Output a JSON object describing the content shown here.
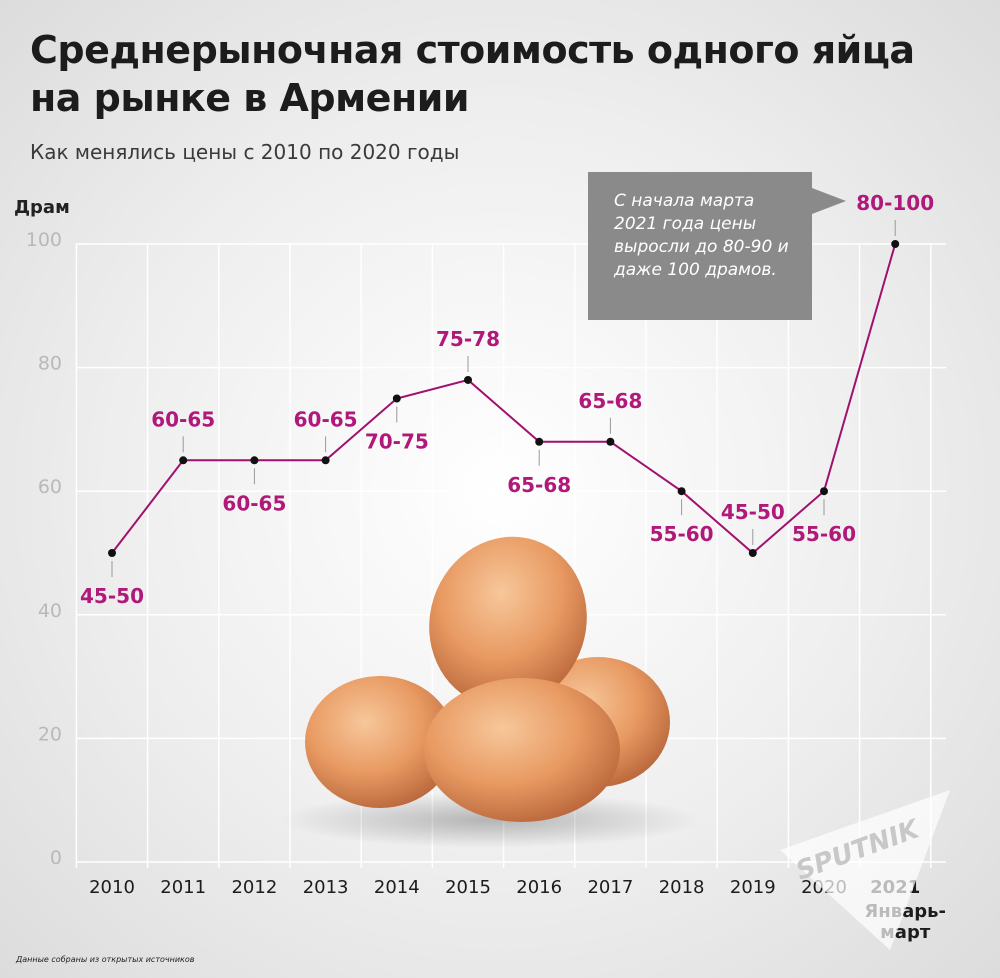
{
  "title": "Среднерыночная стоимость одного яйца на рынке в Армении",
  "subtitle": "Как менялись цены с 2010 по 2020 годы",
  "callout": "С начала марта 2021 года цены выросли до 80-90 и даже 100 драмов.",
  "source": "Данные собраны из открытых источников",
  "logo": "SPUTNIK",
  "colors": {
    "line": "#a0106e",
    "label": "#b0187a",
    "grid": "#ffffff",
    "axis_label": "#b9b9b9"
  },
  "chart_data": {
    "type": "line",
    "ylabel": "Драм",
    "ylim": [
      0,
      100
    ],
    "yticks": [
      0,
      20,
      40,
      60,
      80,
      100
    ],
    "grid": true,
    "categories": [
      "2010",
      "2011",
      "2012",
      "2013",
      "2014",
      "2015",
      "2016",
      "2017",
      "2018",
      "2019",
      "2020",
      "2021"
    ],
    "category_subtitles": [
      "",
      "",
      "",
      "",
      "",
      "",
      "",
      "",
      "",
      "",
      "",
      "Январь-\nмарт"
    ],
    "values": [
      50,
      65,
      65,
      65,
      75,
      78,
      68,
      68,
      60,
      50,
      60,
      100
    ],
    "data_labels": [
      "45-50",
      "60-65",
      "60-65",
      "60-65",
      "70-75",
      "75-78",
      "65-68",
      "65-68",
      "55-60",
      "45-50",
      "55-60",
      "80-100"
    ],
    "label_positions": [
      "below",
      "above",
      "below",
      "above",
      "below",
      "above",
      "below",
      "above",
      "below",
      "above",
      "below",
      "above"
    ]
  }
}
